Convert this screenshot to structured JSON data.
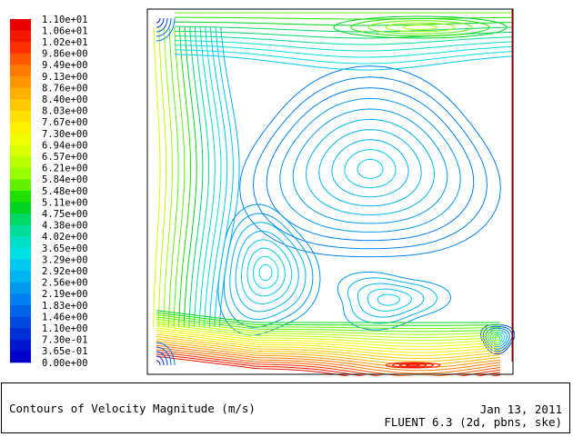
{
  "chart_data": {
    "type": "contour",
    "quantity": "Velocity Magnitude",
    "units": "m/s",
    "colorbar": {
      "labels": [
        "1.10e+01",
        "1.06e+01",
        "1.02e+01",
        "9.86e+00",
        "9.49e+00",
        "9.13e+00",
        "8.76e+00",
        "8.40e+00",
        "8.03e+00",
        "7.67e+00",
        "7.30e+00",
        "6.94e+00",
        "6.57e+00",
        "6.21e+00",
        "5.84e+00",
        "5.48e+00",
        "5.11e+00",
        "4.75e+00",
        "4.38e+00",
        "4.02e+00",
        "3.65e+00",
        "3.29e+00",
        "2.92e+00",
        "2.56e+00",
        "2.19e+00",
        "1.83e+00",
        "1.46e+00",
        "1.10e+00",
        "7.30e-01",
        "3.65e-01",
        "0.00e+00"
      ],
      "colors": [
        "#e80000",
        "#f21800",
        "#ff3000",
        "#ff5800",
        "#ff7a00",
        "#ff9600",
        "#ffb000",
        "#ffc800",
        "#ffe000",
        "#fff000",
        "#f0ff00",
        "#d8ff00",
        "#b8ff00",
        "#98ff00",
        "#60f000",
        "#20e000",
        "#00d420",
        "#00d866",
        "#00dd99",
        "#00e0c8",
        "#00e0e6",
        "#00c8f0",
        "#00b4f2",
        "#0098f0",
        "#0080f0",
        "#0064e8",
        "#0048e0",
        "#0030d8",
        "#0018d0",
        "#0000c8"
      ],
      "min": 0.0,
      "max": 11.0
    },
    "domain": "square cavity",
    "levels": 30
  },
  "footer": {
    "title": "Contours of Velocity Magnitude (m/s)",
    "date": "Jan 13, 2011",
    "solver": "FLUENT 6.3 (2d, pbns, ske)"
  }
}
